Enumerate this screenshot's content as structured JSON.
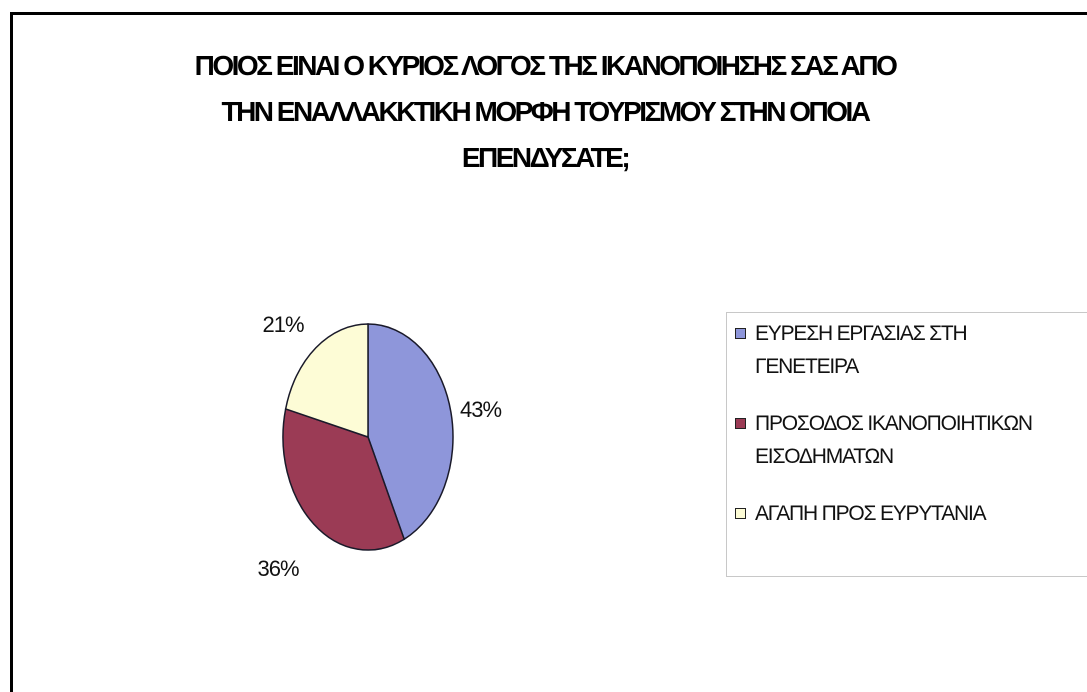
{
  "chart_data": {
    "type": "pie",
    "title_lines": [
      "ΠΟΙΟΣ ΕΙΝΑΙ Ο ΚΥΡΙΟΣ ΛΟΓΟΣ ΤΗΣ ΙΚΑΝΟΠΟΙΗΣΗΣ ΣΑΣ ΑΠΟ",
      "ΤΗΝ ΕΝΑΛΛΑΚΚΤΙΚΗ ΜΟΡΦΗ ΤΟΥΡΙΣΜΟΥ ΣΤΗΝ ΟΠΟΙΑ",
      "ΕΠΕΝΔΥΣΑΤΕ;"
    ],
    "slices": [
      {
        "legend_lines": [
          "ΕΥΡΕΣΗ ΕΡΓΑΣΙΑΣ ΣΤΗ",
          "ΓΕΝΕΤΕΙΡΑ"
        ],
        "value": 43,
        "label": "43%",
        "color": "#8e96da"
      },
      {
        "legend_lines": [
          "ΠΡΟΣΟΔΟΣ ΙΚΑΝΟΠΟΙΗΤΙΚΩΝ",
          "ΕΙΣΟΔΗΜΑΤΩΝ"
        ],
        "value": 36,
        "label": "36%",
        "color": "#9b3b55"
      },
      {
        "legend_lines": [
          "ΑΓΑΠΗ ΠΡΟΣ ΕΥΡΥΤΑΝΙΑ"
        ],
        "value": 21,
        "label": "21%",
        "color": "#fdfcd6"
      }
    ],
    "legend_position": "right",
    "start_angle_deg": 0,
    "direction": "clockwise"
  }
}
